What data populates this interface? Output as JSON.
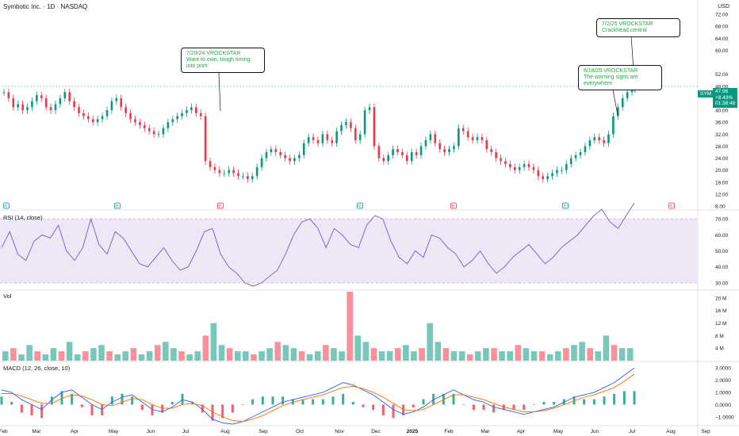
{
  "header": {
    "title": "Symbotic Inc. · 1D · NASDAQ",
    "currency": "USD"
  },
  "colors": {
    "up": "#089981",
    "down": "#f23645",
    "rsi": "#7e57c2",
    "rsi_band": "#ede7f6",
    "macd": "#2962ff",
    "signal": "#ff6d00",
    "annotation": "#22ab44"
  },
  "symbol_tag": {
    "symbol": "SYM",
    "price": "47.96",
    "change": "+8.43%",
    "timer": "01:38:48"
  },
  "callouts": [
    {
      "text": "7/29/24 VROCKSTAR\nWant to own, tough timing\ninto print"
    },
    {
      "text": "6/18/25 VROCKSTAR\nThe warning signs are\neverywhere"
    },
    {
      "text": "7/2/25 VROCKSTAR\nCrackhead central"
    }
  ],
  "chart_data": [
    {
      "type": "candlestick",
      "x_axis": [
        "Feb",
        "Mar",
        "Apr",
        "May",
        "Jun",
        "Jul",
        "Aug",
        "Sep",
        "Oct",
        "Nov",
        "Dec",
        "2025",
        "Feb",
        "Mar",
        "Apr",
        "May",
        "Jun",
        "Jul",
        "Aug",
        "Sep"
      ],
      "y_ticks": [
        8,
        12,
        16,
        20,
        24,
        28,
        32,
        36,
        40,
        44,
        48,
        52,
        60,
        64,
        68,
        72
      ],
      "ylim": [
        8,
        72
      ],
      "last_price": 47.96,
      "closes": [
        46,
        44,
        41,
        42,
        40,
        41,
        43,
        45,
        44,
        41,
        40,
        42,
        44,
        46,
        43,
        41,
        39,
        38,
        37,
        36,
        37,
        38,
        40,
        43,
        44,
        41,
        39,
        37,
        36,
        35,
        34,
        33,
        32,
        32,
        34,
        36,
        37,
        38,
        39,
        40,
        41,
        39,
        38,
        23,
        21,
        20,
        19,
        19,
        20,
        19,
        18,
        18,
        17,
        18,
        21,
        24,
        26,
        27,
        26,
        25,
        24,
        23,
        24,
        25,
        29,
        31,
        30,
        29,
        32,
        30,
        29,
        33,
        35,
        36,
        34,
        30,
        32,
        40,
        41,
        28,
        24,
        23,
        25,
        27,
        26,
        25,
        23,
        26,
        25,
        28,
        30,
        32,
        29,
        27,
        26,
        27,
        28,
        34,
        33,
        31,
        30,
        31,
        30,
        27,
        26,
        24,
        23,
        22,
        21,
        20,
        21,
        22,
        21,
        20,
        18,
        17,
        18,
        19,
        20,
        20,
        22,
        24,
        25,
        26,
        28,
        30,
        31,
        30,
        29,
        32,
        38,
        41,
        44,
        46,
        48
      ],
      "earnings_markers": [
        "E",
        "E",
        "E",
        "E",
        "E",
        "E",
        "E"
      ]
    },
    {
      "type": "line",
      "title": "RSI (14, close)",
      "y_ticks": [
        30,
        40,
        50,
        60,
        70
      ],
      "ylim": [
        26,
        74
      ],
      "band": [
        30,
        70
      ],
      "values": [
        52,
        62,
        48,
        44,
        56,
        60,
        58,
        66,
        50,
        44,
        52,
        70,
        54,
        48,
        62,
        58,
        50,
        42,
        40,
        46,
        52,
        44,
        38,
        40,
        50,
        62,
        64,
        48,
        40,
        36,
        30,
        28,
        30,
        34,
        38,
        48,
        60,
        68,
        70,
        64,
        52,
        64,
        60,
        54,
        52,
        66,
        72,
        70,
        56,
        46,
        42,
        50,
        46,
        60,
        58,
        52,
        48,
        40,
        44,
        50,
        42,
        36,
        40,
        46,
        50,
        54,
        48,
        42,
        46,
        52,
        56,
        60,
        66,
        72,
        76,
        68,
        64,
        72,
        80
      ]
    },
    {
      "type": "bar",
      "title": "Vol",
      "y_ticks": [
        "4 M",
        "8 M",
        "12 M",
        "16 M",
        "20 M"
      ],
      "unit": "M",
      "ylim": [
        0,
        22
      ],
      "values": [
        3,
        4,
        2,
        5,
        3,
        2,
        4,
        3,
        6,
        2,
        3,
        4,
        5,
        3,
        2,
        3,
        4,
        2,
        3,
        5,
        6,
        4,
        3,
        2,
        3,
        8,
        12,
        5,
        4,
        3,
        3,
        2,
        3,
        4,
        6,
        5,
        4,
        3,
        2,
        3,
        5,
        4,
        3,
        22,
        8,
        6,
        4,
        3,
        3,
        4,
        5,
        3,
        4,
        12,
        6,
        4,
        3,
        3,
        2,
        3,
        4,
        4,
        3,
        3,
        5,
        4,
        3,
        3,
        2,
        3,
        4,
        5,
        6,
        4,
        3,
        8,
        5,
        4,
        4
      ]
    },
    {
      "type": "line",
      "title": "MACD (12, 26, close, 10)",
      "y_ticks": [
        -1.0,
        0.0,
        1.0,
        2.0,
        3.0
      ],
      "ylim": [
        -1.6,
        3.4
      ],
      "series": [
        {
          "name": "MACD",
          "values": [
            1.2,
            1.0,
            0.4,
            0.0,
            -0.4,
            0.4,
            1.0,
            1.2,
            0.6,
            0.0,
            -0.4,
            0.2,
            0.6,
            0.8,
            0.2,
            -0.4,
            -0.6,
            -0.2,
            0.4,
            0.2,
            -0.4,
            -1.2,
            -1.5,
            -1.6,
            -1.4,
            -1.0,
            -0.6,
            -0.2,
            0.2,
            0.4,
            0.6,
            0.8,
            1.0,
            1.4,
            1.8,
            1.6,
            1.2,
            0.8,
            0.2,
            -0.4,
            -0.8,
            -0.6,
            -0.2,
            0.4,
            0.8,
            1.2,
            0.8,
            0.4,
            0.2,
            -0.2,
            -0.4,
            -0.6,
            -0.8,
            -0.6,
            -0.4,
            -0.2,
            0.2,
            0.6,
            0.8,
            1.0,
            1.4,
            1.8,
            2.4,
            3.0
          ]
        },
        {
          "name": "Signal",
          "values": [
            0.9,
            0.9,
            0.7,
            0.4,
            0.1,
            0.1,
            0.5,
            0.8,
            0.7,
            0.4,
            0.0,
            -0.1,
            0.2,
            0.5,
            0.4,
            0.0,
            -0.3,
            -0.3,
            0.0,
            0.1,
            -0.1,
            -0.6,
            -1.0,
            -1.3,
            -1.4,
            -1.2,
            -0.9,
            -0.5,
            -0.1,
            0.2,
            0.4,
            0.6,
            0.8,
            1.1,
            1.4,
            1.5,
            1.3,
            1.0,
            0.6,
            0.1,
            -0.4,
            -0.5,
            -0.4,
            0.0,
            0.4,
            0.8,
            0.8,
            0.6,
            0.4,
            0.1,
            -0.2,
            -0.4,
            -0.6,
            -0.6,
            -0.5,
            -0.3,
            0.0,
            0.3,
            0.6,
            0.8,
            1.1,
            1.4,
            1.9,
            2.5
          ]
        }
      ]
    }
  ]
}
